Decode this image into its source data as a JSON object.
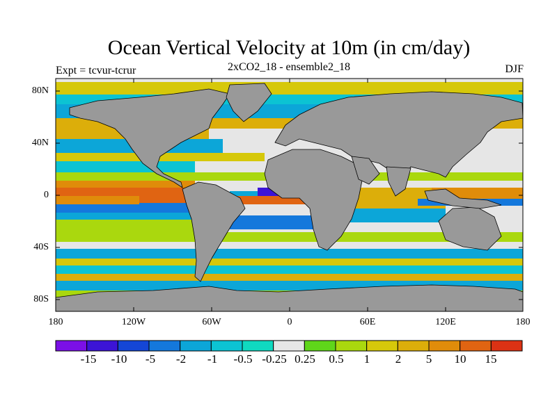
{
  "title": "Ocean Vertical Velocity at 10m (in cm/day)",
  "subtitle": "2xCO2_18 - ensemble2_18",
  "expt_label": "Expt = tcvur-tcrur",
  "season": "DJF",
  "lat_labels": [
    "80N",
    "40N",
    "0",
    "40S",
    "80S"
  ],
  "lon_labels": [
    "180",
    "120W",
    "60W",
    "0",
    "60E",
    "120E",
    "180"
  ],
  "colors": {
    "land": "#999999",
    "bins": [
      "#7b10e6",
      "#3c14d6",
      "#1446d6",
      "#1478dc",
      "#0ca6d8",
      "#0cc3d3",
      "#10d9c0",
      "#e6e6e6",
      "#5fd61a",
      "#aad80e",
      "#d6c80a",
      "#dcae0a",
      "#e08c0a",
      "#e06412",
      "#dc3214"
    ]
  },
  "colorbar": {
    "labels": [
      "-15",
      "-10",
      "-5",
      "-2",
      "-1",
      "-0.5",
      "-0.25",
      "0.25",
      "0.5",
      "1",
      "2",
      "5",
      "10",
      "15"
    ]
  }
}
